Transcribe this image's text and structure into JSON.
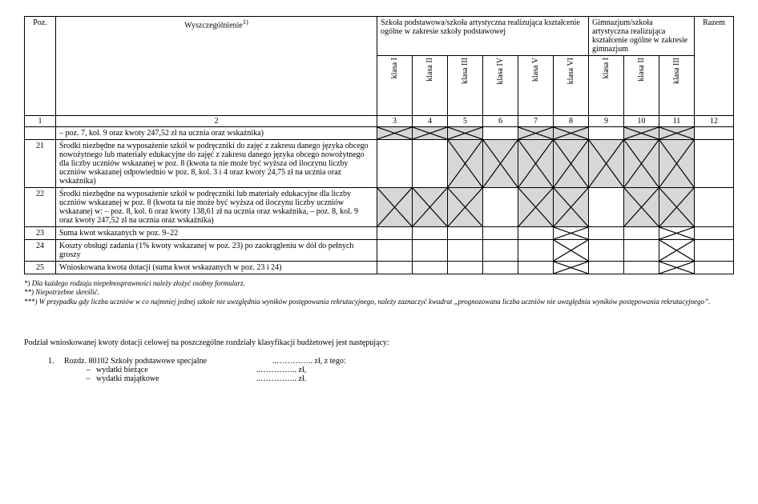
{
  "header": {
    "poz": "Poz.",
    "wysz": "Wyszczególnienie",
    "wysz_sup": "1)",
    "group1": "Szkoła podstawowa/szkoła artystyczna realizująca kształcenie ogólne w zakresie szkoły podstawowej",
    "group2": "Gimnazjum/szkoła artystyczna realizująca kształcenie ogólne w zakresie gimnazjum",
    "razem": "Razem",
    "klasy1": [
      "klasa I",
      "klasa II",
      "klasa III",
      "klasa IV",
      "klasa V",
      "klasa VI"
    ],
    "klasy2": [
      "klasa I",
      "klasa II",
      "klasa III"
    ]
  },
  "numrow": [
    "1",
    "2",
    "3",
    "4",
    "5",
    "6",
    "7",
    "8",
    "9",
    "10",
    "11",
    "12"
  ],
  "rows": [
    {
      "poz": "",
      "desc": "– poz. 7, kol. 9 oraz kwoty 247,52 zł na ucznia oraz wskaźnika)",
      "pattern": [
        "sx",
        "sx",
        "sx",
        "",
        "sx",
        "sx",
        "",
        "sx",
        "sx",
        ""
      ]
    },
    {
      "poz": "21",
      "desc": "Środki niezbędne na wyposażenie szkół w podręczniki do zajęć z zakresu danego języka obcego nowożytnego lub materiały edukacyjne do zajęć z zakresu danego języka obcego nowożytnego dla liczby uczniów wskazanej w poz. 8 (kwota ta nie może być wyższa od iloczynu liczby uczniów wskazanej odpowiednio w poz. 8, kol. 3 i 4 oraz kwoty 24,75 zł na ucznia oraz wskaźnika)",
      "pattern": [
        "",
        "",
        "sx",
        "sx",
        "sx",
        "sx",
        "sx",
        "sx",
        "sx",
        ""
      ]
    },
    {
      "poz": "22",
      "desc": "Środki niezbędne na wyposażenie szkół w podręczniki lub materiały edukacyjne dla liczby uczniów wskazanej w poz. 8 (kwota ta nie może być wyższa od iloczynu liczby uczniów wskazanej w:\n– poz. 8, kol. 6 oraz kwoty 138,61 zł na ucznia oraz wskaźnika,\n– poz. 8, kol. 9 oraz kwoty 247,52 zł na ucznia oraz wskaźnika)",
      "pattern": [
        "sx",
        "sx",
        "sx",
        "",
        "sx",
        "sx",
        "",
        "sx",
        "sx",
        ""
      ]
    },
    {
      "poz": "23",
      "desc": "Suma kwot wskazanych w poz. 9–22",
      "pattern": [
        "",
        "",
        "",
        "",
        "",
        "x",
        "",
        "",
        "x",
        ""
      ]
    },
    {
      "poz": "24",
      "desc": "Koszty obsługi zadania (1% kwoty wskazanej w poz. 23) po zaokrągleniu w dół do pełnych groszy",
      "pattern": [
        "",
        "",
        "",
        "",
        "",
        "x",
        "",
        "",
        "x",
        ""
      ]
    },
    {
      "poz": "25",
      "desc": "Wnioskowana kwota dotacji (suma kwot wskazanych w poz. 23 i 24)",
      "pattern": [
        "",
        "",
        "",
        "",
        "",
        "x",
        "",
        "",
        "x",
        ""
      ]
    }
  ],
  "footnotes": {
    "f1": "*) Dla każdego rodzaju niepełnosprawności należy złożyć osobny formularz.",
    "f2": "**) Niepotrzebne skreślić.",
    "f3": "***) W przypadku gdy liczba uczniów w co najmniej jednej szkole nie uwzględnia wyników postępowania rekrutacyjnego, należy zaznaczyć kwadrat „prognozowana liczba uczniów nie uwzględnia wyników postępowania rekrutacyjnego”."
  },
  "bottom": {
    "intro": "Podział wnioskowanej kwoty dotacji celowej na poszczególne rozdziały klasyfikacji budżetowej jest następujący:",
    "item_num": "1.",
    "item_label": "Rozdz. 80102 Szkoły podstawowe specjalne",
    "item_amount": "..………….. zł, z tego:",
    "sub1_label": "wydatki bieżące",
    "sub1_amount": "..………….. zł,",
    "sub2_label": "wydatki majątkowe",
    "sub2_amount": "..………….. zł."
  }
}
